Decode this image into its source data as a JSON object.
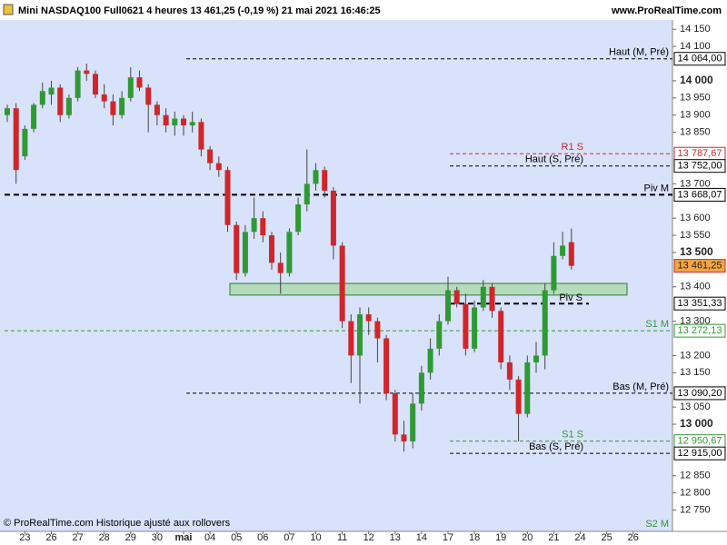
{
  "chart_data": {
    "type": "candlestick",
    "title": "Mini NASDAQ100 Full0621 4 heures 13 461,25 (-0,19 %) 21 mai 2021 16:46:25",
    "source": "www.ProRealTime.com",
    "footer": "© ProRealTime.com Historique ajusté aux rollovers",
    "categories": [
      null,
      null,
      "23",
      null,
      null,
      "26",
      null,
      null,
      "27",
      null,
      null,
      "28",
      null,
      null,
      "29",
      null,
      null,
      "30",
      null,
      null,
      "mai",
      null,
      null,
      "04",
      null,
      null,
      "05",
      null,
      null,
      "06",
      null,
      null,
      "07",
      null,
      null,
      "10",
      null,
      null,
      "11",
      null,
      null,
      "12",
      null,
      null,
      "13",
      null,
      null,
      "14",
      null,
      null,
      "17",
      null,
      null,
      "18",
      null,
      null,
      "19",
      null,
      null,
      "20",
      null,
      null,
      "21",
      null,
      null,
      "24",
      null,
      null,
      "25",
      null,
      null,
      "26"
    ],
    "open": [
      13900,
      13920,
      13780,
      13860,
      13930,
      13960,
      13980,
      13900,
      13950,
      14030,
      14020,
      13960,
      13940,
      13900,
      13950,
      14010,
      13980,
      13930,
      13900,
      13870,
      13890,
      13870,
      13880,
      13800,
      13760,
      13740,
      13580,
      13440,
      13560,
      13600,
      13550,
      13470,
      13440,
      13560,
      13640,
      13700,
      13740,
      13680,
      13520,
      13300,
      13200,
      13320,
      13300,
      13250,
      13090,
      12970,
      12950,
      13060,
      13150,
      13220,
      13300,
      13390,
      13350,
      13220,
      13340,
      13400,
      13330,
      13180,
      13130,
      13030,
      13180,
      13200,
      13390,
      13490,
      13530,
      null,
      null,
      null,
      null,
      null,
      null,
      null
    ],
    "high": [
      13930,
      13935,
      13870,
      13935,
      13995,
      14000,
      13990,
      13960,
      14040,
      14050,
      14030,
      13990,
      13960,
      13970,
      14040,
      14030,
      13990,
      13940,
      13920,
      13910,
      13900,
      13910,
      13890,
      13810,
      13780,
      13750,
      13590,
      13580,
      13660,
      13620,
      13560,
      13500,
      13570,
      13660,
      13800,
      13760,
      13750,
      13690,
      13530,
      13320,
      13340,
      13340,
      13310,
      13260,
      13100,
      13010,
      13090,
      13170,
      13250,
      13320,
      13430,
      13400,
      13380,
      13360,
      13420,
      13410,
      13340,
      13200,
      13140,
      13200,
      13240,
      13410,
      13530,
      13560,
      13570,
      null,
      null,
      null,
      null,
      null,
      null,
      null
    ],
    "low": [
      13880,
      13700,
      13770,
      13850,
      13920,
      13930,
      13880,
      13890,
      13940,
      14000,
      13950,
      13920,
      13870,
      13890,
      13940,
      13970,
      13850,
      13870,
      13850,
      13840,
      13840,
      13850,
      13780,
      13740,
      13720,
      13560,
      13420,
      13430,
      13540,
      13530,
      13450,
      13380,
      13430,
      13550,
      13620,
      13680,
      13660,
      13480,
      13280,
      13120,
      13060,
      13260,
      13180,
      13070,
      12950,
      12920,
      12930,
      13040,
      13130,
      13200,
      13290,
      13340,
      13200,
      13210,
      13330,
      13310,
      13160,
      13100,
      12950,
      13020,
      13150,
      13160,
      13380,
      13480,
      13450,
      null,
      null,
      null,
      null,
      null,
      null,
      null
    ],
    "close": [
      13920,
      13740,
      13860,
      13930,
      13970,
      13980,
      13900,
      13950,
      14030,
      14020,
      13960,
      13940,
      13900,
      13950,
      14010,
      13980,
      13930,
      13900,
      13870,
      13890,
      13870,
      13880,
      13800,
      13760,
      13740,
      13580,
      13440,
      13560,
      13600,
      13550,
      13470,
      13440,
      13560,
      13640,
      13700,
      13740,
      13680,
      13520,
      13300,
      13200,
      13320,
      13300,
      13250,
      13090,
      12970,
      12950,
      13060,
      13150,
      13220,
      13300,
      13390,
      13350,
      13220,
      13340,
      13400,
      13330,
      13180,
      13130,
      13030,
      13180,
      13200,
      13390,
      13490,
      13520,
      13461.25,
      null,
      null,
      null,
      null,
      null,
      null,
      null
    ],
    "last_label": "13 461,25",
    "up_color": "#2f9a33",
    "down_color": "#d0262a",
    "ylim": [
      12688,
      14177
    ],
    "yticks": [
      {
        "value": 14150,
        "label": "14 150"
      },
      {
        "value": 14100,
        "label": "14 100"
      },
      {
        "value": 14000,
        "label": "14 000"
      },
      {
        "value": 13950,
        "label": "13 950"
      },
      {
        "value": 13900,
        "label": "13 900"
      },
      {
        "value": 13850,
        "label": "13 850"
      },
      {
        "value": 13700,
        "label": "13 700"
      },
      {
        "value": 13600,
        "label": "13 600"
      },
      {
        "value": 13550,
        "label": "13 550"
      },
      {
        "value": 13500,
        "label": "13 500"
      },
      {
        "value": 13400,
        "label": "13 400"
      },
      {
        "value": 13300,
        "label": "13 300"
      },
      {
        "value": 13200,
        "label": "13 200"
      },
      {
        "value": 13150,
        "label": "13 150"
      },
      {
        "value": 13050,
        "label": "13 050"
      },
      {
        "value": 13000,
        "label": "13 000"
      },
      {
        "value": 12850,
        "label": "12 850"
      },
      {
        "value": 12800,
        "label": "12 800"
      },
      {
        "value": 12750,
        "label": "12 750"
      }
    ],
    "zone": {
      "low": 13376,
      "high": 13410,
      "color": "#a9d9ad"
    },
    "levels": [
      {
        "label": "Haut (M, Pré)",
        "value": 14064,
        "value_label": "14 064,00",
        "color": "#000000"
      },
      {
        "label": "R1 S",
        "value": 13787.67,
        "value_label": "13 787,67",
        "color": "#d0262a"
      },
      {
        "label": "Haut (S, Pré)",
        "value": 13752,
        "value_label": "13 752,00",
        "color": "#000000"
      },
      {
        "label": "Piv M",
        "value": 13668.07,
        "value_label": "13 668,07",
        "color": "#000000",
        "width": 2
      },
      {
        "label": "Piv S",
        "value": 13351.33,
        "value_label": "13 351,33",
        "color": "#000000",
        "width": 2
      },
      {
        "label": "S1 M",
        "value": 13272.13,
        "value_label": "13 272,13",
        "color": "#2f9a33"
      },
      {
        "label": "Bas (M, Pré)",
        "value": 13090.2,
        "value_label": "13 090,20",
        "color": "#000000"
      },
      {
        "label": "S1 S",
        "value": 12950.67,
        "value_label": "12 950,67",
        "color": "#2f9a33"
      },
      {
        "label": "Bas (S, Pré)",
        "value": 12915,
        "value_label": "12 915,00",
        "color": "#000000"
      },
      {
        "label": "S2 M",
        "color": "#2f9a33"
      }
    ]
  }
}
